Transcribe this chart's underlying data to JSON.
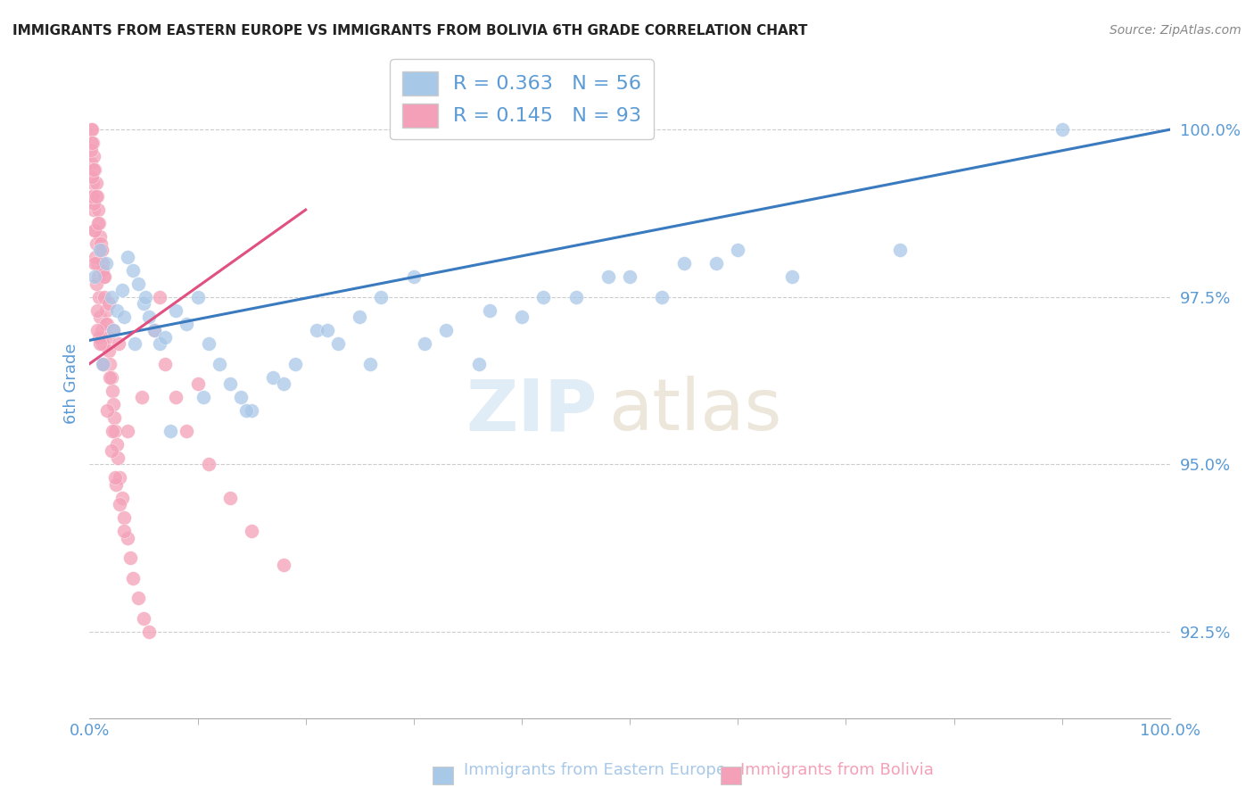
{
  "title": "IMMIGRANTS FROM EASTERN EUROPE VS IMMIGRANTS FROM BOLIVIA 6TH GRADE CORRELATION CHART",
  "source": "Source: ZipAtlas.com",
  "ylabel": "6th Grade",
  "y_ticks": [
    92.5,
    95.0,
    97.5,
    100.0
  ],
  "y_tick_labels": [
    "92.5%",
    "95.0%",
    "97.5%",
    "100.0%"
  ],
  "x_lim": [
    0.0,
    100.0
  ],
  "y_lim": [
    91.2,
    101.2
  ],
  "blue_R": 0.363,
  "blue_N": 56,
  "pink_R": 0.145,
  "pink_N": 93,
  "blue_color": "#a8c8e8",
  "pink_color": "#f4a0b8",
  "trend_blue": "#3a7abf",
  "trend_pink": "#e05080",
  "blue_scatter_x": [
    0.5,
    1.0,
    1.5,
    2.0,
    2.5,
    3.0,
    3.5,
    4.0,
    4.5,
    5.0,
    5.5,
    6.0,
    6.5,
    7.0,
    8.0,
    9.0,
    10.0,
    11.0,
    12.0,
    13.0,
    14.0,
    15.0,
    17.0,
    19.0,
    21.0,
    23.0,
    25.0,
    27.0,
    30.0,
    33.0,
    36.0,
    40.0,
    45.0,
    50.0,
    55.0,
    60.0,
    1.2,
    2.2,
    3.2,
    4.2,
    5.2,
    7.5,
    10.5,
    14.5,
    18.0,
    22.0,
    26.0,
    31.0,
    37.0,
    42.0,
    48.0,
    53.0,
    58.0,
    65.0,
    75.0,
    90.0
  ],
  "blue_scatter_y": [
    97.8,
    98.2,
    98.0,
    97.5,
    97.3,
    97.6,
    98.1,
    97.9,
    97.7,
    97.4,
    97.2,
    97.0,
    96.8,
    96.9,
    97.3,
    97.1,
    97.5,
    96.8,
    96.5,
    96.2,
    96.0,
    95.8,
    96.3,
    96.5,
    97.0,
    96.8,
    97.2,
    97.5,
    97.8,
    97.0,
    96.5,
    97.2,
    97.5,
    97.8,
    98.0,
    98.2,
    96.5,
    97.0,
    97.2,
    96.8,
    97.5,
    95.5,
    96.0,
    95.8,
    96.2,
    97.0,
    96.5,
    96.8,
    97.3,
    97.5,
    97.8,
    97.5,
    98.0,
    97.8,
    98.2,
    100.0
  ],
  "pink_scatter_x": [
    0.1,
    0.1,
    0.2,
    0.2,
    0.3,
    0.3,
    0.4,
    0.4,
    0.5,
    0.5,
    0.6,
    0.6,
    0.7,
    0.7,
    0.8,
    0.8,
    0.9,
    0.9,
    1.0,
    1.0,
    1.1,
    1.1,
    1.2,
    1.2,
    1.3,
    1.3,
    1.4,
    1.5,
    1.6,
    1.7,
    1.8,
    1.9,
    2.0,
    2.1,
    2.2,
    2.3,
    2.4,
    2.5,
    2.6,
    2.8,
    3.0,
    3.2,
    3.5,
    3.8,
    4.0,
    4.5,
    5.0,
    5.5,
    6.0,
    7.0,
    8.0,
    9.0,
    11.0,
    13.0,
    15.0,
    18.0,
    0.15,
    0.25,
    0.35,
    0.45,
    0.55,
    0.65,
    0.75,
    0.85,
    1.05,
    1.25,
    1.55,
    1.85,
    2.15,
    2.45,
    0.3,
    0.5,
    0.7,
    1.0,
    1.3,
    1.6,
    2.0,
    2.4,
    2.8,
    3.2,
    0.2,
    0.4,
    0.6,
    0.8,
    1.1,
    1.4,
    1.8,
    2.2,
    2.7,
    3.5,
    4.8,
    6.5,
    10.0
  ],
  "pink_scatter_y": [
    100.0,
    99.5,
    100.0,
    99.0,
    99.8,
    99.2,
    99.6,
    98.8,
    99.4,
    98.5,
    99.2,
    98.3,
    99.0,
    98.0,
    98.8,
    97.8,
    98.6,
    97.5,
    98.4,
    97.2,
    98.2,
    97.0,
    98.0,
    96.8,
    97.8,
    96.5,
    97.5,
    97.3,
    97.1,
    96.9,
    96.7,
    96.5,
    96.3,
    96.1,
    95.9,
    95.7,
    95.5,
    95.3,
    95.1,
    94.8,
    94.5,
    94.2,
    93.9,
    93.6,
    93.3,
    93.0,
    92.7,
    92.5,
    97.0,
    96.5,
    96.0,
    95.5,
    95.0,
    94.5,
    94.0,
    93.5,
    99.7,
    99.3,
    98.9,
    98.5,
    98.1,
    97.7,
    97.3,
    96.9,
    98.3,
    97.9,
    97.1,
    96.3,
    95.5,
    94.7,
    99.0,
    98.0,
    97.0,
    96.8,
    96.5,
    95.8,
    95.2,
    94.8,
    94.4,
    94.0,
    99.8,
    99.4,
    99.0,
    98.6,
    98.2,
    97.8,
    97.4,
    97.0,
    96.8,
    95.5,
    96.0,
    97.5,
    96.2
  ],
  "watermark_zip": "ZIP",
  "watermark_atlas": "atlas",
  "background_color": "#ffffff",
  "grid_color": "#cccccc",
  "tick_label_color": "#5b9bd5",
  "title_color": "#222222"
}
